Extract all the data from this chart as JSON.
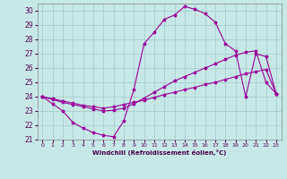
{
  "background_color": "#c8e8e8",
  "grid_color": "#a8cece",
  "line_color": "#990099",
  "marker": "*",
  "xlabel": "Windchill (Refroidissement éolien,°C)",
  "xlim": [
    -0.5,
    23.5
  ],
  "ylim": [
    21.0,
    30.5
  ],
  "yticks": [
    21,
    22,
    23,
    24,
    25,
    26,
    27,
    28,
    29,
    30
  ],
  "xticks": [
    0,
    1,
    2,
    3,
    4,
    5,
    6,
    7,
    8,
    9,
    10,
    11,
    12,
    13,
    14,
    15,
    16,
    17,
    18,
    19,
    20,
    21,
    22,
    23
  ],
  "series1_x": [
    0,
    1,
    2,
    3,
    4,
    5,
    6,
    7,
    8,
    9,
    10,
    11,
    12,
    13,
    14,
    15,
    16,
    17,
    18,
    19,
    20,
    21,
    22,
    23
  ],
  "series1_y": [
    24.0,
    23.5,
    23.0,
    22.2,
    21.8,
    21.5,
    21.3,
    21.2,
    22.3,
    24.5,
    27.7,
    28.5,
    29.4,
    29.7,
    30.3,
    30.1,
    29.8,
    29.2,
    27.7,
    27.2,
    24.0,
    27.0,
    26.8,
    24.2
  ],
  "series2_x": [
    0,
    1,
    2,
    3,
    4,
    5,
    6,
    7,
    8,
    9,
    10,
    11,
    12,
    13,
    14,
    15,
    16,
    17,
    18,
    19,
    20,
    21,
    22,
    23
  ],
  "series2_y": [
    24.0,
    23.8,
    23.6,
    23.45,
    23.3,
    23.15,
    23.0,
    23.05,
    23.2,
    23.5,
    23.9,
    24.3,
    24.7,
    25.1,
    25.4,
    25.7,
    26.0,
    26.3,
    26.6,
    26.9,
    27.1,
    27.2,
    25.0,
    24.2
  ],
  "series3_x": [
    0,
    1,
    2,
    3,
    4,
    5,
    6,
    7,
    8,
    9,
    10,
    11,
    12,
    13,
    14,
    15,
    16,
    17,
    18,
    19,
    20,
    21,
    22,
    23
  ],
  "series3_y": [
    24.0,
    23.85,
    23.7,
    23.55,
    23.4,
    23.3,
    23.2,
    23.3,
    23.45,
    23.6,
    23.75,
    23.95,
    24.15,
    24.3,
    24.5,
    24.65,
    24.85,
    25.0,
    25.2,
    25.4,
    25.6,
    25.75,
    25.9,
    24.2
  ]
}
